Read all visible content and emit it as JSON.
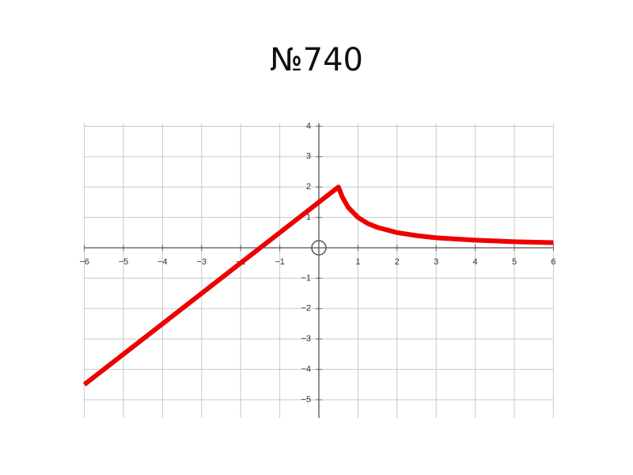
{
  "chart_data": {
    "type": "line",
    "title": "№740",
    "x": [
      -6,
      0.5,
      0.6,
      0.75,
      1,
      1.25,
      1.5,
      2,
      2.5,
      3,
      4,
      5,
      6
    ],
    "series": [
      {
        "color": "#ee0000",
        "values": [
          -4.5,
          2,
          1.67,
          1.33,
          1,
          0.8,
          0.67,
          0.5,
          0.4,
          0.33,
          0.25,
          0.2,
          0.17
        ]
      }
    ],
    "xlim": [
      -6,
      6
    ],
    "ylim": [
      -5.6,
      4.1
    ],
    "xticks": [
      {
        "value": -6,
        "label": "−6"
      },
      {
        "value": -5,
        "label": "−5"
      },
      {
        "value": -4,
        "label": "−4"
      },
      {
        "value": -3,
        "label": "−3"
      },
      {
        "value": -2,
        "label": "−2"
      },
      {
        "value": -1,
        "label": "−1"
      },
      1,
      2,
      3,
      4,
      5,
      6
    ],
    "yticks": [
      {
        "value": -5,
        "label": "−5"
      },
      {
        "value": -4,
        "label": "−4"
      },
      {
        "value": -3,
        "label": "−3"
      },
      {
        "value": -2,
        "label": "−2"
      },
      {
        "value": -1,
        "label": "−1"
      },
      1,
      2,
      3,
      4
    ],
    "grid": true
  }
}
